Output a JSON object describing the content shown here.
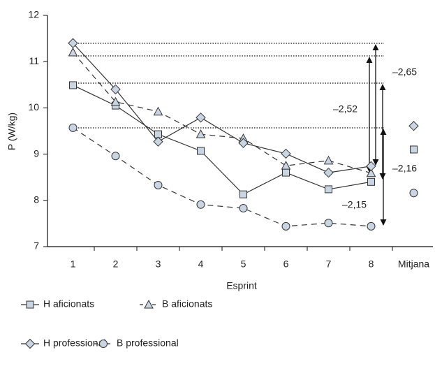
{
  "chart_data": {
    "type": "line",
    "x_label": "Esprint",
    "y_label": "P (W/kg)",
    "categories": [
      "1",
      "2",
      "3",
      "4",
      "5",
      "6",
      "7",
      "8",
      "Mitjana"
    ],
    "ylim": [
      7,
      12
    ],
    "yticks": [
      7,
      8,
      9,
      10,
      11,
      12
    ],
    "grid": false,
    "legend": "bottom",
    "series": [
      {
        "name": "H aficionats",
        "color": "#333333",
        "marker": "square",
        "linestyle": "solid",
        "values": [
          10.49,
          10.05,
          9.43,
          9.07,
          8.13,
          8.6,
          8.24,
          8.4,
          9.1
        ]
      },
      {
        "name": "B aficionats",
        "color": "#333333",
        "marker": "triangle",
        "linestyle": "dashed",
        "values": [
          11.2,
          10.13,
          9.92,
          9.43,
          9.34,
          8.75,
          8.86,
          8.59,
          null
        ]
      },
      {
        "name": "H professional",
        "color": "#333333",
        "marker": "diamond",
        "linestyle": "solid",
        "values": [
          11.4,
          10.4,
          9.27,
          9.79,
          9.24,
          9.01,
          8.6,
          8.74,
          9.61
        ]
      },
      {
        "name": "B professional",
        "color": "#333333",
        "marker": "circle",
        "linestyle": "dashed",
        "values": [
          9.57,
          8.96,
          8.33,
          7.91,
          7.83,
          7.44,
          7.51,
          7.44,
          8.16
        ]
      }
    ],
    "marker_fill": "#c9d5e2",
    "annotations": [
      "–2,52",
      "–2,65",
      "–2,16",
      "–2,15"
    ]
  }
}
